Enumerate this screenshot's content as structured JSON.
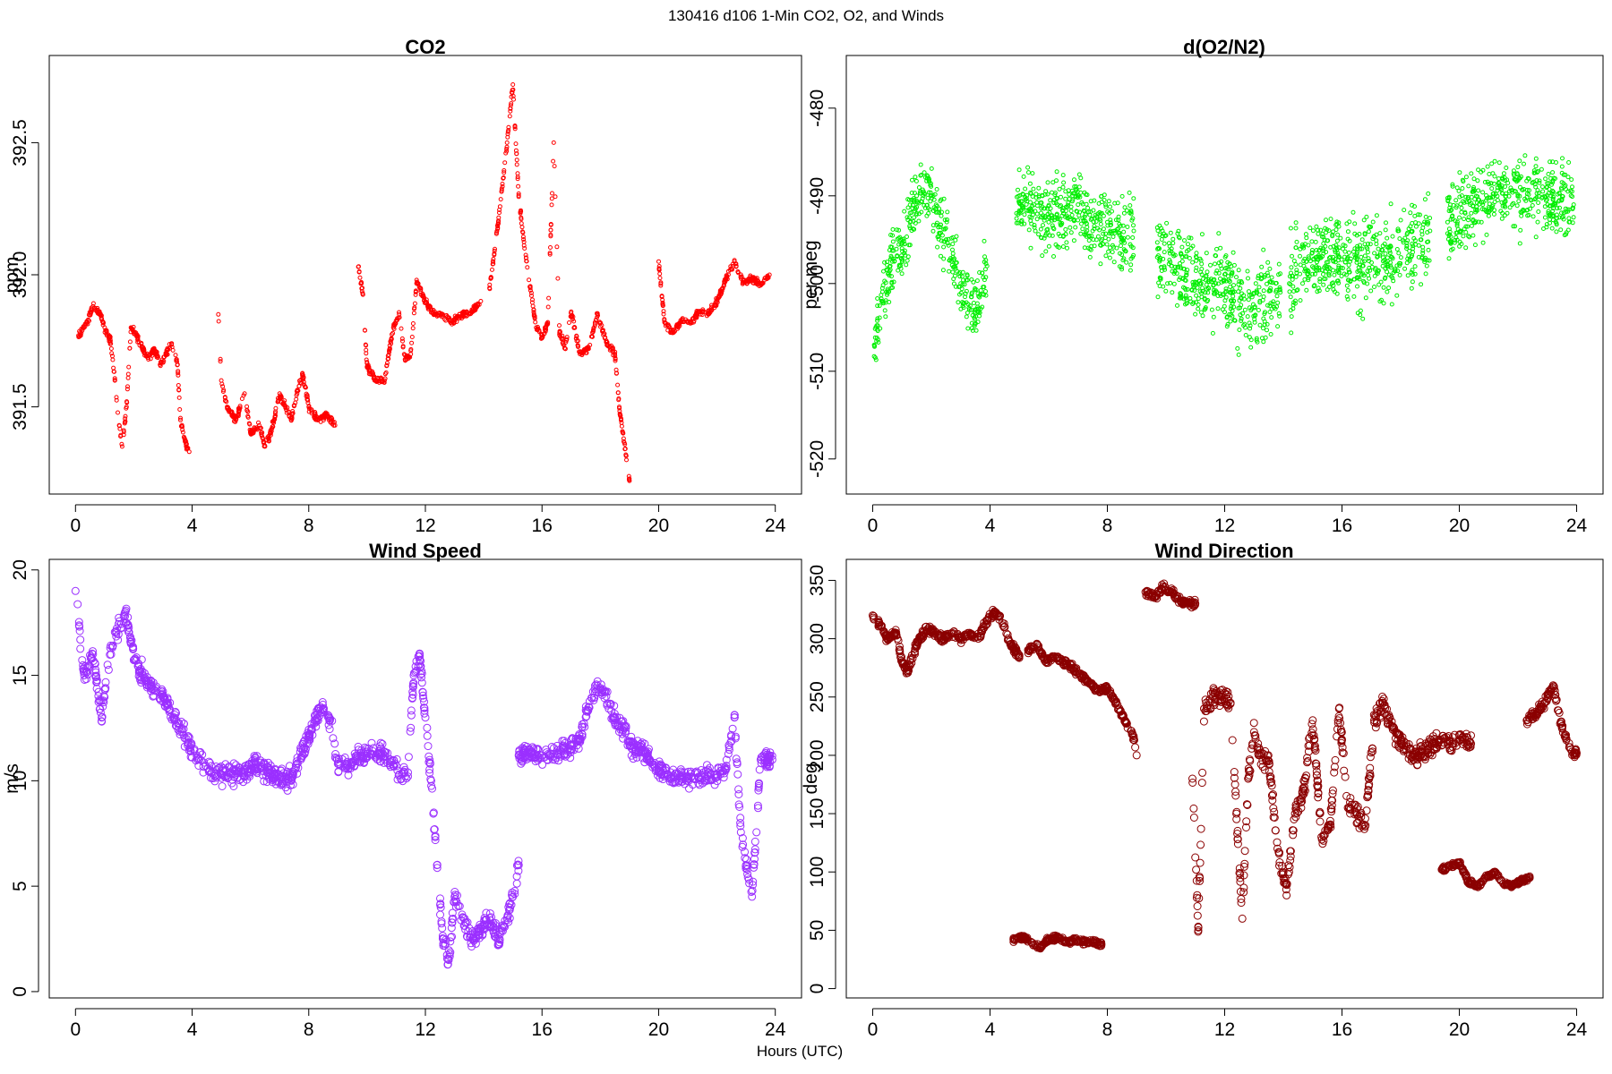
{
  "figure": {
    "title": "130416   d106   1-Min CO2, O2, and Winds",
    "xlabel": "Hours (UTC)"
  },
  "chart_data": [
    {
      "id": "co2",
      "type": "scatter",
      "title": "CO2",
      "xlabel": "",
      "ylabel": "ppm",
      "xlim": [
        -0.9,
        24.9
      ],
      "ylim": [
        391.17,
        392.83
      ],
      "xticks": [
        0,
        4,
        8,
        12,
        16,
        20,
        24
      ],
      "yticks": [
        391.5,
        392.0,
        392.5
      ],
      "ytick_labels": [
        "391.5",
        "392.0",
        "392.5"
      ],
      "color": "#ff0000",
      "marker": "open-circle",
      "grid": false,
      "segments": [
        {
          "x": [
            0.1,
            0.4,
            0.6,
            0.8,
            1.0,
            1.2,
            1.35,
            1.5,
            1.6,
            1.75,
            1.9,
            2.1,
            2.3,
            2.5,
            2.7,
            2.9,
            3.1,
            3.3,
            3.5,
            3.6,
            3.8,
            3.9
          ],
          "y": [
            391.77,
            391.82,
            391.88,
            391.86,
            391.8,
            391.75,
            391.6,
            391.43,
            391.35,
            391.5,
            391.8,
            391.77,
            391.72,
            391.68,
            391.72,
            391.66,
            391.7,
            391.74,
            391.66,
            391.45,
            391.35,
            391.33
          ]
        },
        {
          "x": [
            4.9,
            5.0,
            5.2,
            5.5,
            5.8,
            6.0,
            6.3,
            6.5,
            6.7,
            7.0,
            7.2,
            7.4,
            7.6,
            7.8,
            8.0,
            8.3,
            8.6,
            8.9
          ],
          "y": [
            391.85,
            391.6,
            391.5,
            391.45,
            391.55,
            391.4,
            391.43,
            391.35,
            391.4,
            391.55,
            391.5,
            391.45,
            391.56,
            391.62,
            391.5,
            391.45,
            391.47,
            391.43
          ]
        },
        {
          "x": [
            9.7,
            9.85,
            10.0,
            10.3,
            10.6,
            10.9,
            11.1,
            11.3,
            11.5,
            11.7,
            11.9,
            12.1,
            12.3,
            12.6,
            12.9,
            13.3,
            13.6,
            13.9
          ],
          "y": [
            392.03,
            391.93,
            391.65,
            391.6,
            391.6,
            391.8,
            391.85,
            391.68,
            391.7,
            391.98,
            391.92,
            391.88,
            391.85,
            391.85,
            391.82,
            391.85,
            391.86,
            391.9
          ]
        },
        {
          "x": [
            14.2,
            14.5,
            14.8,
            15.0,
            15.2,
            15.4,
            15.6,
            15.8,
            16.0,
            16.2,
            16.4,
            16.6,
            16.8,
            17.0,
            17.3,
            17.6,
            17.9,
            18.2,
            18.5,
            18.65,
            18.8,
            19.0
          ],
          "y": [
            391.95,
            392.2,
            392.5,
            392.72,
            392.3,
            392.1,
            391.95,
            391.8,
            391.76,
            391.82,
            392.5,
            391.78,
            391.72,
            391.86,
            391.7,
            391.72,
            391.85,
            391.75,
            391.7,
            391.5,
            391.38,
            391.22
          ]
        },
        {
          "x": [
            20.0,
            20.2,
            20.5,
            20.8,
            21.1,
            21.4,
            21.7,
            22.0,
            22.3,
            22.6,
            22.9,
            23.2,
            23.5,
            23.8
          ],
          "y": [
            392.05,
            391.82,
            391.78,
            391.83,
            391.82,
            391.86,
            391.85,
            391.9,
            391.98,
            392.05,
            391.97,
            391.99,
            391.96,
            392.0
          ]
        }
      ]
    },
    {
      "id": "o2",
      "type": "scatter",
      "title": "d(O2/N2)",
      "xlabel": "",
      "ylabel": "per meg",
      "xlim": [
        -0.9,
        24.9
      ],
      "ylim": [
        -524,
        -474
      ],
      "xticks": [
        0,
        4,
        8,
        12,
        16,
        20,
        24
      ],
      "yticks": [
        -520,
        -510,
        -500,
        -490,
        -480
      ],
      "ytick_labels": [
        "-520",
        "-510",
        "-500",
        "-490",
        "-480"
      ],
      "color": "#00ee00",
      "marker": "open-circle",
      "grid": false,
      "segments": [
        {
          "x": [
            0.05,
            0.3,
            0.6,
            1.0,
            1.5,
            2.0,
            2.5,
            3.0,
            3.5,
            3.9
          ],
          "y": [
            -507,
            -502,
            -498,
            -496,
            -490,
            -490,
            -495,
            -500,
            -503,
            -498
          ],
          "spread": 5
        },
        {
          "x": [
            4.9,
            5.5,
            6.0,
            6.5,
            7.0,
            7.5,
            8.0,
            8.5,
            8.9
          ],
          "y": [
            -492,
            -491,
            -493,
            -492,
            -491,
            -494,
            -493,
            -495,
            -494
          ],
          "spread": 6
        },
        {
          "x": [
            9.7,
            10.2,
            10.7,
            11.2,
            11.7,
            12.2,
            12.7,
            13.2,
            13.9
          ],
          "y": [
            -497,
            -498,
            -499,
            -500,
            -500,
            -501,
            -503,
            -502,
            -501
          ],
          "spread": 7
        },
        {
          "x": [
            14.2,
            14.7,
            15.2,
            15.7,
            16.2,
            16.7,
            17.2,
            17.7,
            18.2,
            18.7,
            19.0
          ],
          "y": [
            -500,
            -498,
            -497,
            -497,
            -497,
            -498,
            -497,
            -497,
            -496,
            -495,
            -494
          ],
          "spread": 7
        },
        {
          "x": [
            19.6,
            20.2,
            20.8,
            21.4,
            22.0,
            22.6,
            23.2,
            23.9
          ],
          "y": [
            -493,
            -492,
            -491,
            -489,
            -490,
            -489,
            -491,
            -491
          ],
          "spread": 6
        }
      ]
    },
    {
      "id": "wspd",
      "type": "scatter",
      "title": "Wind Speed",
      "xlabel": "",
      "ylabel": "m/s",
      "xlim": [
        -0.9,
        24.9
      ],
      "ylim": [
        -0.3,
        20.5
      ],
      "xticks": [
        0,
        4,
        8,
        12,
        16,
        20,
        24
      ],
      "yticks": [
        0,
        5,
        10,
        15,
        20
      ],
      "ytick_labels": [
        "0",
        "5",
        "10",
        "15",
        "20"
      ],
      "color": "#9b30ff",
      "marker": "open-circle",
      "grid": false,
      "segments": [
        {
          "x": [
            0.0,
            0.3,
            0.6,
            0.9,
            1.1,
            1.4,
            1.7,
            1.9,
            2.2,
            2.6,
            3.0,
            3.4,
            3.8,
            4.2,
            4.6,
            5.0,
            5.4,
            5.8,
            6.2,
            6.6,
            7.0,
            7.4,
            7.8,
            8.1,
            8.4,
            8.7,
            9.0,
            9.3,
            9.6,
            9.9,
            10.2,
            10.5,
            10.8,
            11.1,
            11.4,
            11.6,
            11.8,
            12.0,
            12.2,
            12.4,
            12.6,
            12.8,
            13.0,
            13.3,
            13.6,
            13.9,
            14.2,
            14.5,
            14.8,
            15.0,
            15.2
          ],
          "y": [
            19.0,
            15.0,
            16.0,
            13.0,
            15.5,
            17.0,
            18.0,
            16.5,
            15.2,
            14.5,
            14.0,
            13.0,
            12.0,
            11.0,
            10.5,
            10.3,
            10.3,
            10.5,
            10.8,
            10.4,
            10.2,
            10.0,
            11.5,
            12.5,
            13.5,
            13.0,
            10.8,
            10.8,
            11.0,
            11.2,
            11.4,
            11.3,
            11.0,
            10.3,
            10.2,
            15.0,
            16.0,
            13.0,
            10.0,
            6.0,
            2.5,
            1.5,
            4.5,
            3.5,
            2.5,
            3.0,
            3.5,
            2.5,
            3.5,
            4.5,
            6.0
          ],
          "spread": 0.7
        },
        {
          "x": [
            15.2,
            15.6,
            16.0,
            16.5,
            17.0,
            17.3,
            17.6,
            17.9,
            18.2,
            18.5,
            18.8,
            19.1,
            19.4,
            19.7,
            20.0,
            20.4,
            20.8,
            21.2,
            21.6,
            22.0,
            22.3,
            22.6,
            22.8,
            23.0,
            23.2,
            23.5,
            23.9
          ],
          "y": [
            11.2,
            11.3,
            11.2,
            11.3,
            11.5,
            12.0,
            13.5,
            14.5,
            14.0,
            13.0,
            12.5,
            11.5,
            11.5,
            11.0,
            10.5,
            10.2,
            10.1,
            10.1,
            10.2,
            10.3,
            10.5,
            13.0,
            8.0,
            6.0,
            4.5,
            11.0,
            11.0
          ],
          "spread": 0.6
        }
      ]
    },
    {
      "id": "wdir",
      "type": "scatter",
      "title": "Wind Direction",
      "xlabel": "",
      "ylabel": "deg",
      "xlim": [
        -0.9,
        24.9
      ],
      "ylim": [
        -8,
        368
      ],
      "xticks": [
        0,
        4,
        8,
        12,
        16,
        20,
        24
      ],
      "yticks": [
        0,
        50,
        100,
        150,
        200,
        250,
        300,
        350
      ],
      "ytick_labels": [
        "0",
        "50",
        "100",
        "150",
        "200",
        "250",
        "300",
        "350"
      ],
      "color": "#8b0000",
      "marker": "open-circle",
      "grid": false,
      "segments": [
        {
          "x": [
            0.0,
            0.3,
            0.5,
            0.8,
            1.0,
            1.2,
            1.5,
            1.8,
            2.1,
            2.4,
            2.7,
            3.0,
            3.3,
            3.6,
            3.9,
            4.1,
            4.3,
            4.5,
            4.7,
            5.0
          ],
          "y": [
            320,
            310,
            300,
            305,
            280,
            272,
            295,
            310,
            305,
            300,
            305,
            300,
            305,
            300,
            315,
            322,
            320,
            310,
            295,
            285
          ],
          "spread": 5
        },
        {
          "x": [
            5.3,
            5.6,
            5.9,
            6.2,
            6.5,
            6.8,
            7.1,
            7.4,
            7.7,
            8.0,
            8.3,
            8.6,
            8.9,
            9.0
          ],
          "y": [
            290,
            295,
            280,
            285,
            280,
            275,
            268,
            262,
            255,
            258,
            245,
            230,
            215,
            200
          ],
          "spread": 4
        },
        {
          "x": [
            4.8,
            5.1,
            5.4,
            5.7,
            6.0,
            6.3,
            6.6,
            6.9,
            7.2,
            7.5,
            7.8
          ],
          "y": [
            42,
            44,
            40,
            35,
            42,
            44,
            40,
            42,
            40,
            40,
            38
          ],
          "spread": 3
        },
        {
          "x": [
            9.3,
            9.6,
            9.9,
            10.2,
            10.5,
            10.8,
            11.0
          ],
          "y": [
            340,
            335,
            345,
            340,
            332,
            330,
            330
          ],
          "spread": 5
        },
        {
          "x": [
            10.9,
            11.1,
            11.3,
            11.6,
            11.9,
            12.2,
            12.4,
            12.6,
            12.8,
            13.0,
            13.2,
            13.5,
            13.8,
            14.1,
            14.4,
            14.7,
            15.0,
            15.3,
            15.6,
            15.9,
            16.2,
            16.5,
            16.8,
            17.1,
            17.4,
            17.7,
            18.0,
            18.3,
            18.6,
            18.9,
            19.2,
            19.5,
            19.8,
            20.1,
            20.4
          ],
          "y": [
            180,
            50,
            240,
            250,
            250,
            245,
            150,
            60,
            180,
            220,
            200,
            195,
            120,
            85,
            150,
            170,
            230,
            130,
            140,
            240,
            155,
            150,
            140,
            230,
            245,
            225,
            210,
            205,
            200,
            205,
            210,
            215,
            210,
            215,
            210
          ],
          "spread": 12
        },
        {
          "x": [
            19.4,
            19.7,
            20.0,
            20.3,
            20.6,
            20.9,
            21.2,
            21.5,
            21.8,
            22.1,
            22.4
          ],
          "y": [
            102,
            105,
            108,
            92,
            88,
            95,
            100,
            90,
            88,
            92,
            95
          ],
          "spread": 3
        },
        {
          "x": [
            22.3,
            22.6,
            22.9,
            23.2,
            23.5,
            23.8,
            24.0
          ],
          "y": [
            230,
            235,
            245,
            260,
            225,
            205,
            202
          ],
          "spread": 6
        }
      ]
    }
  ]
}
